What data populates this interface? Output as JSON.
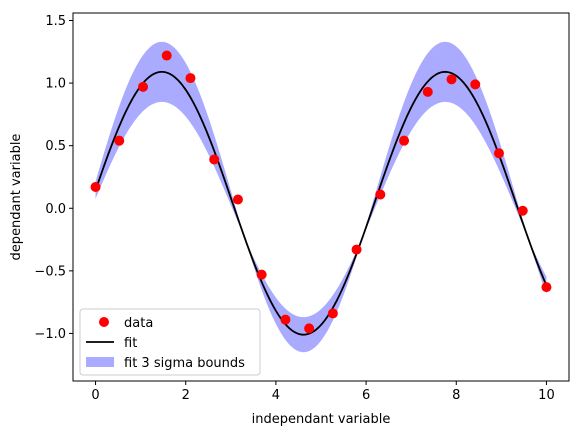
{
  "chart_data": {
    "type": "scatter",
    "title": "",
    "xlabel": "independant variable",
    "ylabel": "dependant variable",
    "xlim": [
      -0.5,
      10.5
    ],
    "ylim": [
      -1.38,
      1.56
    ],
    "xticks": [
      0,
      2,
      4,
      6,
      8,
      10
    ],
    "yticks": [
      -1.0,
      -0.5,
      0.0,
      0.5,
      1.0,
      1.5
    ],
    "xtick_labels": [
      "0",
      "2",
      "4",
      "6",
      "8",
      "10"
    ],
    "ytick_labels": [
      "−1.0",
      "−0.5",
      "0.0",
      "0.5",
      "1.0",
      "1.5"
    ],
    "grid": false,
    "legend_position": "lower-left",
    "series": [
      {
        "name": "data",
        "kind": "scatter",
        "color": "#ff0000",
        "x": [
          0.0,
          0.526,
          1.053,
          1.579,
          2.105,
          2.632,
          3.158,
          3.684,
          4.211,
          4.737,
          5.263,
          5.789,
          6.316,
          6.842,
          7.368,
          7.895,
          8.421,
          8.947,
          9.474,
          10.0
        ],
        "y": [
          0.17,
          0.54,
          0.97,
          1.22,
          1.04,
          0.39,
          0.07,
          -0.53,
          -0.89,
          -0.96,
          -0.84,
          -0.33,
          0.11,
          0.54,
          0.93,
          1.03,
          0.99,
          0.44,
          -0.02,
          -0.63
        ]
      },
      {
        "name": "fit",
        "kind": "line",
        "color": "#000000",
        "function": "A*sin(w*x+phi)+c",
        "params": {
          "A": 1.05,
          "w": 1.0,
          "phi": 0.1,
          "c": 0.04
        }
      },
      {
        "name": "fit 3 sigma bounds",
        "kind": "band",
        "color": "#aaaaff",
        "upper": {
          "A": 1.24,
          "w": 1.0,
          "phi": 0.1,
          "c": 0.09
        },
        "lower": {
          "A": 0.86,
          "w": 1.0,
          "phi": 0.1,
          "c": -0.01
        }
      }
    ]
  }
}
